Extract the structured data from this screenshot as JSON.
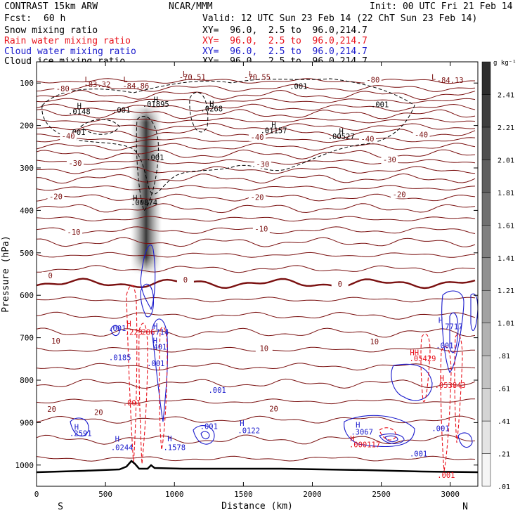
{
  "header": {
    "model": "CONTRAST 15km ARW",
    "org": "NCAR/MMM",
    "init": "Init: 00 UTC Fri 21 Feb 14",
    "fcst_label": "Fcst:",
    "fcst_value": "60 h",
    "valid": "Valid: 12 UTC Sun 23 Feb 14 (22 ChT Sun 23 Feb 14)"
  },
  "legend": [
    {
      "label": "Snow mixing ratio",
      "xy": "",
      "color": "#000000"
    },
    {
      "label": "Rain water mixing ratio",
      "xy": "XY=  96.0,  2.5 to  96.0,214.7",
      "color": "#e8101a"
    },
    {
      "label": "Cloud water mixing ratio",
      "xy": "XY=  96.0,  2.5 to  96.0,214.7",
      "color": "#1a1acc"
    },
    {
      "label": "Cloud ice mixing ratio",
      "xy": "XY=  96.0,  2.5 to  96.0,214.7",
      "color": "#000000"
    }
  ],
  "snow_xy": "XY=  96.0,  2.5 to  96.0,214.7",
  "colors": {
    "temp": "#7a1010",
    "rain": "#e8101a",
    "cloudwater": "#1a1acc",
    "ice": "#000000",
    "terrain": "#000000"
  },
  "chart_data": {
    "type": "cross-section",
    "xlabel": "Distance (km)",
    "ylabel": "Pressure (hPa)",
    "xlim": [
      0,
      3200
    ],
    "ylim": [
      1050,
      50
    ],
    "xticks": [
      0,
      500,
      1000,
      1500,
      2000,
      2500,
      3000
    ],
    "xtick_labels": [
      "0",
      "500",
      "1000",
      "1500",
      "2000",
      "2500",
      "3000"
    ],
    "yticks": [
      100,
      200,
      300,
      400,
      500,
      600,
      700,
      800,
      900,
      1000
    ],
    "ytick_labels": [
      "100",
      "200",
      "300",
      "400",
      "500",
      "600",
      "700",
      "800",
      "900",
      "1000"
    ],
    "end_labels": {
      "left": "S",
      "right": "N"
    },
    "colorbar": {
      "unit": "g kg⁻¹",
      "levels": [
        0.01,
        0.21,
        0.41,
        0.61,
        0.81,
        1.01,
        1.21,
        1.41,
        1.61,
        1.81,
        2.01,
        2.21,
        2.41
      ],
      "labels": [
        ".01",
        ".21",
        ".41",
        ".61",
        ".81",
        "1.01",
        "1.21",
        "1.41",
        "1.61",
        "1.81",
        "2.01",
        "2.21",
        "2.41"
      ]
    },
    "temperature_contours": [
      {
        "label": "-80",
        "x": 190,
        "p": 118
      },
      {
        "label": "-80",
        "x": 2440,
        "p": 97
      },
      {
        "label": "-40",
        "x": 230,
        "p": 230
      },
      {
        "label": "-40",
        "x": 1600,
        "p": 232
      },
      {
        "label": "-40",
        "x": 2400,
        "p": 236
      },
      {
        "label": "-40",
        "x": 2790,
        "p": 226
      },
      {
        "label": "-30",
        "x": 280,
        "p": 293
      },
      {
        "label": "-30",
        "x": 1640,
        "p": 296
      },
      {
        "label": "-30",
        "x": 2560,
        "p": 285
      },
      {
        "label": "-20",
        "x": 140,
        "p": 372
      },
      {
        "label": "-20",
        "x": 1600,
        "p": 374
      },
      {
        "label": "-20",
        "x": 2630,
        "p": 367
      },
      {
        "label": "-10",
        "x": 270,
        "p": 456
      },
      {
        "label": "-10",
        "x": 1630,
        "p": 448
      },
      {
        "label": "0",
        "x": 100,
        "p": 558
      },
      {
        "label": "0",
        "x": 1080,
        "p": 568
      },
      {
        "label": "0",
        "x": 2200,
        "p": 578
      },
      {
        "label": "10",
        "x": 140,
        "p": 712
      },
      {
        "label": "10",
        "x": 1650,
        "p": 730
      },
      {
        "label": "10",
        "x": 2450,
        "p": 714
      },
      {
        "label": "20",
        "x": 110,
        "p": 873
      },
      {
        "label": "20",
        "x": 450,
        "p": 880
      },
      {
        "label": "20",
        "x": 1720,
        "p": 872
      }
    ],
    "annotations": [
      {
        "text": "-83.32",
        "x": 440,
        "p": 110,
        "kind": "temp"
      },
      {
        "text": "L",
        "x": 365,
        "p": 98,
        "kind": "temp"
      },
      {
        "text": "L",
        "x": 645,
        "p": 98,
        "kind": "temp"
      },
      {
        "text": "-84.86",
        "x": 720,
        "p": 113,
        "kind": "temp"
      },
      {
        "text": "L",
        "x": 1075,
        "p": 85,
        "kind": "temp"
      },
      {
        "text": "-70.51",
        "x": 1130,
        "p": 92,
        "kind": "temp"
      },
      {
        "text": "L",
        "x": 1555,
        "p": 85,
        "kind": "temp"
      },
      {
        "text": "-70.55",
        "x": 1600,
        "p": 92,
        "kind": "temp"
      },
      {
        "text": "L",
        "x": 2880,
        "p": 92,
        "kind": "temp"
      },
      {
        "text": "-84.13",
        "x": 3000,
        "p": 100,
        "kind": "temp"
      },
      {
        "text": ".001",
        "x": 1900,
        "p": 114,
        "kind": "ice"
      },
      {
        "text": "H",
        "x": 310,
        "p": 160,
        "kind": "ice"
      },
      {
        "text": ".0148",
        "x": 310,
        "p": 173,
        "kind": "ice"
      },
      {
        "text": ".001",
        "x": 615,
        "p": 170,
        "kind": "ice"
      },
      {
        "text": "H",
        "x": 865,
        "p": 145,
        "kind": "ice"
      },
      {
        "text": ".01895",
        "x": 865,
        "p": 156,
        "kind": "ice"
      },
      {
        "text": "H",
        "x": 1270,
        "p": 155,
        "kind": "ice"
      },
      {
        "text": ".0268",
        "x": 1270,
        "p": 167,
        "kind": "ice"
      },
      {
        "text": ".001",
        "x": 2490,
        "p": 157,
        "kind": "ice"
      },
      {
        "text": "H",
        "x": 1720,
        "p": 205,
        "kind": "ice"
      },
      {
        "text": ".01157",
        "x": 1720,
        "p": 218,
        "kind": "ice"
      },
      {
        "text": "H",
        "x": 2210,
        "p": 220,
        "kind": "ice"
      },
      {
        "text": ".00527",
        "x": 2210,
        "p": 232,
        "kind": "ice"
      },
      {
        "text": ".001",
        "x": 290,
        "p": 222,
        "kind": "ice"
      },
      {
        "text": ".001",
        "x": 860,
        "p": 282,
        "kind": "ice"
      },
      {
        "text": "H",
        "x": 715,
        "p": 377,
        "kind": "ice"
      },
      {
        "text": ".00874",
        "x": 780,
        "p": 388,
        "kind": "ice"
      },
      {
        "text": ".001",
        "x": 585,
        "p": 684,
        "kind": "cloud"
      },
      {
        "text": ".0185",
        "x": 605,
        "p": 753,
        "kind": "cloud"
      },
      {
        "text": "H",
        "x": 670,
        "p": 673,
        "kind": "rain"
      },
      {
        "text": ".223",
        "x": 705,
        "p": 693,
        "kind": "rain"
      },
      {
        "text": "286",
        "x": 810,
        "p": 693,
        "kind": "rain"
      },
      {
        "text": "H",
        "x": 862,
        "p": 679,
        "kind": "cloud"
      },
      {
        "text": ".714",
        "x": 895,
        "p": 693,
        "kind": "cloud"
      },
      {
        "text": "H",
        "x": 860,
        "p": 713,
        "kind": "cloud"
      },
      {
        "text": ".401",
        "x": 880,
        "p": 728,
        "kind": "cloud"
      },
      {
        "text": ".001",
        "x": 865,
        "p": 767,
        "kind": "cloud"
      },
      {
        "text": ".001",
        "x": 1310,
        "p": 830,
        "kind": "cloud"
      },
      {
        "text": ".001",
        "x": 690,
        "p": 860,
        "kind": "rain"
      },
      {
        "text": "H",
        "x": 290,
        "p": 917,
        "kind": "cloud"
      },
      {
        "text": ".2591",
        "x": 320,
        "p": 932,
        "kind": "cloud"
      },
      {
        "text": "H",
        "x": 585,
        "p": 945,
        "kind": "cloud"
      },
      {
        "text": ".0244",
        "x": 620,
        "p": 965,
        "kind": "cloud"
      },
      {
        "text": "H",
        "x": 965,
        "p": 944,
        "kind": "cloud"
      },
      {
        "text": ".1578",
        "x": 1000,
        "p": 965,
        "kind": "cloud"
      },
      {
        "text": ".001",
        "x": 1250,
        "p": 915,
        "kind": "cloud"
      },
      {
        "text": "H",
        "x": 1490,
        "p": 908,
        "kind": "cloud"
      },
      {
        "text": ".0122",
        "x": 1540,
        "p": 925,
        "kind": "cloud"
      },
      {
        "text": "H",
        "x": 2330,
        "p": 912,
        "kind": "cloud"
      },
      {
        "text": ".3067",
        "x": 2360,
        "p": 928,
        "kind": "cloud"
      },
      {
        "text": "H",
        "x": 2290,
        "p": 944,
        "kind": "rain"
      },
      {
        "text": ".000117",
        "x": 2380,
        "p": 958,
        "kind": "rain"
      },
      {
        "text": ".001",
        "x": 2930,
        "p": 920,
        "kind": "cloud"
      },
      {
        "text": ".001",
        "x": 2770,
        "p": 980,
        "kind": "cloud"
      },
      {
        "text": ".001",
        "x": 2970,
        "p": 1030,
        "kind": "rain"
      },
      {
        "text": "H",
        "x": 2930,
        "p": 665,
        "kind": "cloud"
      },
      {
        "text": ".7717",
        "x": 3010,
        "p": 680,
        "kind": "cloud"
      },
      {
        "text": ".001",
        "x": 2960,
        "p": 725,
        "kind": "cloud"
      },
      {
        "text": "HH",
        "x": 2740,
        "p": 741,
        "kind": "rain"
      },
      {
        "text": ".05429",
        "x": 2800,
        "p": 755,
        "kind": "rain"
      },
      {
        "text": "H",
        "x": 2940,
        "p": 802,
        "kind": "rain"
      },
      {
        "text": ".053843",
        "x": 3000,
        "p": 818,
        "kind": "rain"
      }
    ]
  }
}
